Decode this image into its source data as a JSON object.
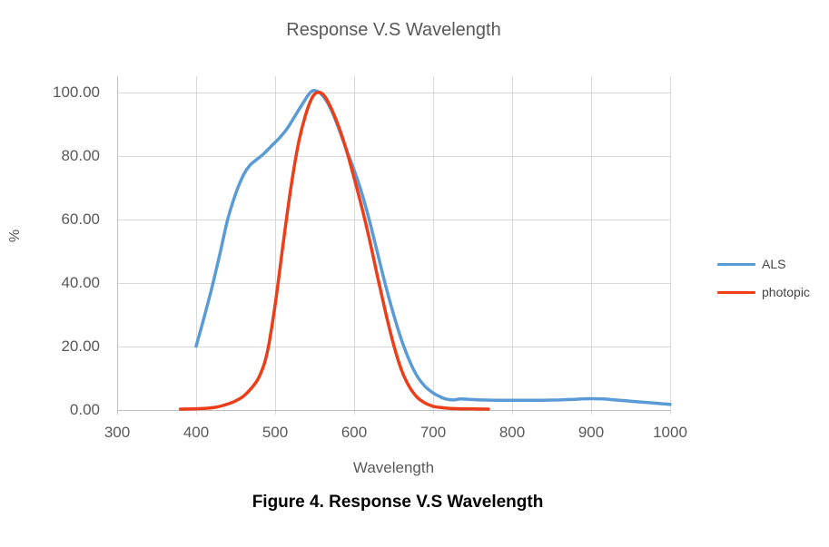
{
  "title": "Response V.S Wavelength",
  "caption": "Figure 4. Response V.S Wavelength",
  "chart_data": {
    "type": "line",
    "title": "Response V.S Wavelength",
    "xlabel": "Wavelength",
    "ylabel": "%",
    "x_ticks": [
      "300",
      "400",
      "500",
      "600",
      "700",
      "800",
      "900",
      "1000"
    ],
    "y_ticks": [
      "100.00",
      "80.00",
      "60.00",
      "40.00",
      "20.00",
      "0.00"
    ],
    "y_tick_values": [
      100,
      80,
      60,
      40,
      20,
      0
    ],
    "xlim": [
      300,
      1000
    ],
    "ylim": [
      0,
      105
    ],
    "grid": true,
    "legend_position": "right",
    "colors": {
      "gridline": "#D9D9D9",
      "axis": "#BFBFBF",
      "text": "#595959"
    },
    "series": [
      {
        "name": "ALS",
        "color": "#5B9BD5",
        "points": [
          [
            400,
            20
          ],
          [
            410,
            29
          ],
          [
            420,
            38.5
          ],
          [
            430,
            49
          ],
          [
            440,
            60
          ],
          [
            450,
            68
          ],
          [
            460,
            74
          ],
          [
            468,
            77
          ],
          [
            475,
            78.5
          ],
          [
            485,
            80.5
          ],
          [
            495,
            83
          ],
          [
            505,
            85.5
          ],
          [
            515,
            88.5
          ],
          [
            525,
            92.5
          ],
          [
            535,
            96.5
          ],
          [
            543,
            99.5
          ],
          [
            548,
            100.5
          ],
          [
            553,
            100.3
          ],
          [
            560,
            99
          ],
          [
            570,
            95
          ],
          [
            580,
            89
          ],
          [
            590,
            82
          ],
          [
            600,
            75.5
          ],
          [
            610,
            68
          ],
          [
            620,
            59
          ],
          [
            630,
            49
          ],
          [
            640,
            39
          ],
          [
            650,
            30
          ],
          [
            660,
            22
          ],
          [
            670,
            15.5
          ],
          [
            680,
            10.5
          ],
          [
            690,
            7.3
          ],
          [
            700,
            5.3
          ],
          [
            708,
            4.2
          ],
          [
            716,
            3.4
          ],
          [
            725,
            3.1
          ],
          [
            735,
            3.4
          ],
          [
            745,
            3.3
          ],
          [
            760,
            3.1
          ],
          [
            780,
            3
          ],
          [
            800,
            3
          ],
          [
            820,
            3
          ],
          [
            840,
            3
          ],
          [
            860,
            3.1
          ],
          [
            880,
            3.3
          ],
          [
            900,
            3.5
          ],
          [
            915,
            3.4
          ],
          [
            930,
            3.1
          ],
          [
            945,
            2.8
          ],
          [
            960,
            2.5
          ],
          [
            975,
            2.2
          ],
          [
            990,
            1.9
          ],
          [
            1000,
            1.7
          ]
        ]
      },
      {
        "name": "photopic",
        "color": "#ED3E1A",
        "points": [
          [
            380,
            0.2
          ],
          [
            395,
            0.25
          ],
          [
            410,
            0.4
          ],
          [
            425,
            0.8
          ],
          [
            440,
            1.8
          ],
          [
            450,
            2.8
          ],
          [
            460,
            4.3
          ],
          [
            470,
            6.8
          ],
          [
            480,
            10.5
          ],
          [
            490,
            18
          ],
          [
            500,
            33
          ],
          [
            510,
            52
          ],
          [
            520,
            70
          ],
          [
            530,
            84.5
          ],
          [
            540,
            94
          ],
          [
            548,
            98.8
          ],
          [
            555,
            100
          ],
          [
            562,
            99
          ],
          [
            570,
            95.5
          ],
          [
            580,
            89.5
          ],
          [
            590,
            82
          ],
          [
            600,
            73
          ],
          [
            610,
            63.5
          ],
          [
            620,
            53
          ],
          [
            630,
            41.5
          ],
          [
            640,
            30.5
          ],
          [
            650,
            20.5
          ],
          [
            660,
            12.5
          ],
          [
            670,
            7.2
          ],
          [
            680,
            3.9
          ],
          [
            690,
            2.1
          ],
          [
            700,
            1.1
          ],
          [
            710,
            0.7
          ],
          [
            720,
            0.45
          ],
          [
            735,
            0.3
          ],
          [
            750,
            0.25
          ],
          [
            770,
            0.2
          ]
        ]
      }
    ]
  },
  "legend": {
    "items": [
      {
        "label": "ALS"
      },
      {
        "label": "photopic"
      }
    ]
  }
}
